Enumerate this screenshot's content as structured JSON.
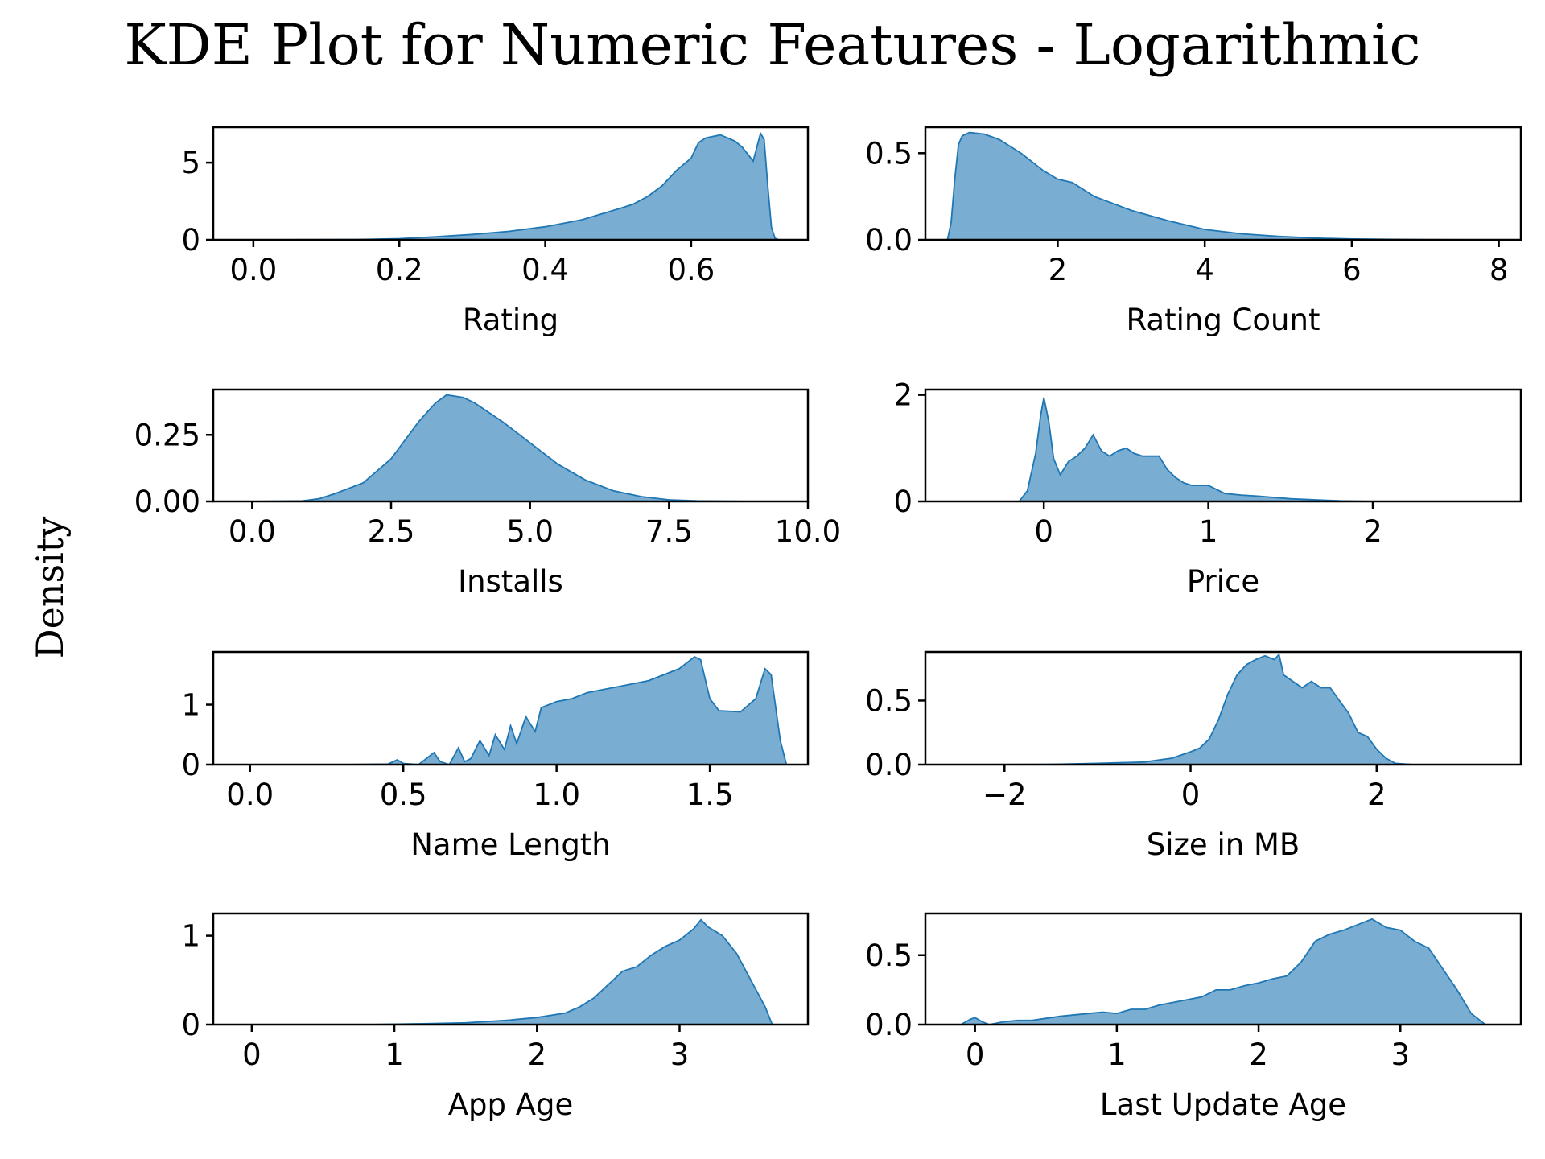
{
  "figure": {
    "title": "KDE Plot for Numeric Features - Logarithmic",
    "ylabel": "Density",
    "fill_color": "#1f77b4"
  },
  "chart_data": [
    {
      "type": "area",
      "xlabel": "Rating",
      "xlim": [
        -0.055,
        0.76
      ],
      "ylim": [
        0,
        7.3
      ],
      "xticks": [
        0.0,
        0.2,
        0.4,
        0.6
      ],
      "xtick_labels": [
        "0.0",
        "0.2",
        "0.4",
        "0.6"
      ],
      "yticks": [
        0,
        5
      ],
      "ytick_labels": [
        "0",
        "5"
      ],
      "x": [
        0.0,
        0.14,
        0.2,
        0.25,
        0.3,
        0.35,
        0.4,
        0.45,
        0.5,
        0.52,
        0.54,
        0.56,
        0.58,
        0.6,
        0.61,
        0.62,
        0.63,
        0.64,
        0.65,
        0.66,
        0.67,
        0.68,
        0.685,
        0.69,
        0.695,
        0.7,
        0.705,
        0.71,
        0.715,
        0.72
      ],
      "y": [
        0,
        0.02,
        0.08,
        0.2,
        0.35,
        0.55,
        0.85,
        1.3,
        2.0,
        2.3,
        2.8,
        3.5,
        4.5,
        5.3,
        6.3,
        6.6,
        6.7,
        6.8,
        6.6,
        6.4,
        6.0,
        5.4,
        5.1,
        6.0,
        6.9,
        6.5,
        3.5,
        0.8,
        0.1,
        0
      ]
    },
    {
      "type": "area",
      "xlabel": "Rating Count",
      "xlim": [
        0.2,
        8.3
      ],
      "ylim": [
        0,
        0.65
      ],
      "xticks": [
        2,
        4,
        6,
        8
      ],
      "xtick_labels": [
        "2",
        "4",
        "6",
        "8"
      ],
      "yticks": [
        0.0,
        0.5
      ],
      "ytick_labels": [
        "0.0",
        "0.5"
      ],
      "x": [
        0.5,
        0.55,
        0.6,
        0.65,
        0.7,
        0.8,
        1.0,
        1.2,
        1.5,
        1.8,
        2.0,
        2.2,
        2.5,
        3.0,
        3.5,
        4.0,
        4.5,
        5.0,
        5.5,
        6.0,
        7.0,
        8.0
      ],
      "y": [
        0,
        0.1,
        0.35,
        0.55,
        0.6,
        0.62,
        0.61,
        0.58,
        0.5,
        0.4,
        0.35,
        0.33,
        0.25,
        0.17,
        0.11,
        0.06,
        0.035,
        0.02,
        0.01,
        0.005,
        0.001,
        0
      ]
    },
    {
      "type": "area",
      "xlabel": "Installs",
      "xlim": [
        -0.7,
        10.0
      ],
      "ylim": [
        0,
        0.42
      ],
      "xticks": [
        0.0,
        2.5,
        5.0,
        7.5,
        10.0
      ],
      "xtick_labels": [
        "0.0",
        "2.5",
        "5.0",
        "7.5",
        "10.0"
      ],
      "yticks": [
        0.0,
        0.25
      ],
      "ytick_labels": [
        "0.00",
        "0.25"
      ],
      "x": [
        0.0,
        0.9,
        1.2,
        1.5,
        2.0,
        2.5,
        3.0,
        3.3,
        3.5,
        3.8,
        4.0,
        4.5,
        5.0,
        5.5,
        6.0,
        6.5,
        7.0,
        7.5,
        8.0,
        9.0,
        10.0
      ],
      "y": [
        0,
        0.002,
        0.01,
        0.03,
        0.07,
        0.16,
        0.3,
        0.37,
        0.4,
        0.39,
        0.37,
        0.3,
        0.22,
        0.14,
        0.08,
        0.04,
        0.018,
        0.006,
        0.002,
        0,
        0
      ]
    },
    {
      "type": "area",
      "xlabel": "Price",
      "xlim": [
        -0.72,
        2.9
      ],
      "ylim": [
        0,
        2.1
      ],
      "xticks": [
        0,
        1,
        2
      ],
      "xtick_labels": [
        "0",
        "1",
        "2"
      ],
      "yticks": [
        0,
        2
      ],
      "ytick_labels": [
        "0",
        "2"
      ],
      "x": [
        -0.15,
        -0.1,
        -0.05,
        -0.02,
        0.0,
        0.03,
        0.06,
        0.1,
        0.15,
        0.2,
        0.25,
        0.3,
        0.35,
        0.4,
        0.45,
        0.5,
        0.55,
        0.6,
        0.65,
        0.7,
        0.75,
        0.8,
        0.85,
        0.9,
        1.0,
        1.1,
        1.2,
        1.3,
        1.5,
        1.8,
        2.0
      ],
      "y": [
        0,
        0.2,
        0.9,
        1.6,
        1.95,
        1.5,
        0.8,
        0.5,
        0.75,
        0.85,
        1.0,
        1.25,
        0.95,
        0.85,
        0.95,
        1.0,
        0.9,
        0.85,
        0.85,
        0.85,
        0.6,
        0.45,
        0.35,
        0.3,
        0.3,
        0.15,
        0.12,
        0.1,
        0.05,
        0.01,
        0
      ]
    },
    {
      "type": "area",
      "xlabel": "Name Length",
      "xlim": [
        -0.12,
        1.82
      ],
      "ylim": [
        0,
        1.88
      ],
      "xticks": [
        0.0,
        0.5,
        1.0,
        1.5
      ],
      "xtick_labels": [
        "0.0",
        "0.5",
        "1.0",
        "1.5"
      ],
      "yticks": [
        0,
        1
      ],
      "ytick_labels": [
        "0",
        "1"
      ],
      "x": [
        0.3,
        0.45,
        0.48,
        0.5,
        0.55,
        0.6,
        0.62,
        0.65,
        0.68,
        0.7,
        0.72,
        0.75,
        0.78,
        0.8,
        0.83,
        0.85,
        0.87,
        0.9,
        0.93,
        0.95,
        1.0,
        1.05,
        1.1,
        1.2,
        1.3,
        1.4,
        1.45,
        1.47,
        1.5,
        1.53,
        1.6,
        1.65,
        1.68,
        1.7,
        1.73,
        1.75
      ],
      "y": [
        0,
        0.01,
        0.08,
        0.02,
        0,
        0.2,
        0.05,
        0.0,
        0.28,
        0.05,
        0.1,
        0.4,
        0.15,
        0.5,
        0.25,
        0.65,
        0.35,
        0.8,
        0.55,
        0.95,
        1.05,
        1.1,
        1.2,
        1.3,
        1.4,
        1.6,
        1.8,
        1.75,
        1.1,
        0.9,
        0.88,
        1.1,
        1.6,
        1.5,
        0.4,
        0
      ]
    },
    {
      "type": "area",
      "xlabel": "Size in MB",
      "xlim": [
        -2.85,
        3.55
      ],
      "ylim": [
        0,
        0.88
      ],
      "xticks": [
        -2,
        0,
        2
      ],
      "xtick_labels": [
        "−2",
        "0",
        "2"
      ],
      "yticks": [
        0.0,
        0.5
      ],
      "ytick_labels": [
        "0.0",
        "0.5"
      ],
      "x": [
        -2.5,
        -1.5,
        -1.0,
        -0.5,
        -0.2,
        0.0,
        0.1,
        0.2,
        0.3,
        0.4,
        0.5,
        0.6,
        0.7,
        0.8,
        0.9,
        0.95,
        1.0,
        1.1,
        1.2,
        1.3,
        1.4,
        1.5,
        1.6,
        1.7,
        1.8,
        1.9,
        2.0,
        2.1,
        2.2,
        2.4
      ],
      "y": [
        0,
        0.002,
        0.01,
        0.02,
        0.05,
        0.1,
        0.13,
        0.2,
        0.35,
        0.55,
        0.7,
        0.78,
        0.82,
        0.85,
        0.82,
        0.86,
        0.7,
        0.65,
        0.6,
        0.65,
        0.6,
        0.6,
        0.5,
        0.4,
        0.25,
        0.22,
        0.12,
        0.05,
        0.01,
        0
      ]
    },
    {
      "type": "area",
      "xlabel": "App Age",
      "xlim": [
        -0.27,
        3.9
      ],
      "ylim": [
        0,
        1.25
      ],
      "xticks": [
        0,
        1,
        2,
        3
      ],
      "xtick_labels": [
        "0",
        "1",
        "2",
        "3"
      ],
      "yticks": [
        0,
        1
      ],
      "ytick_labels": [
        "0",
        "1"
      ],
      "x": [
        0.8,
        1.2,
        1.5,
        1.8,
        2.0,
        2.2,
        2.3,
        2.4,
        2.5,
        2.6,
        2.7,
        2.8,
        2.9,
        3.0,
        3.1,
        3.15,
        3.2,
        3.3,
        3.4,
        3.5,
        3.6,
        3.65
      ],
      "y": [
        0,
        0.01,
        0.02,
        0.05,
        0.08,
        0.13,
        0.2,
        0.3,
        0.45,
        0.6,
        0.65,
        0.78,
        0.88,
        0.95,
        1.08,
        1.18,
        1.1,
        1.0,
        0.8,
        0.5,
        0.2,
        0
      ]
    },
    {
      "type": "area",
      "xlabel": "Last Update Age",
      "xlim": [
        -0.35,
        3.85
      ],
      "ylim": [
        0,
        0.8
      ],
      "xticks": [
        0,
        1,
        2,
        3
      ],
      "xtick_labels": [
        "0",
        "1",
        "2",
        "3"
      ],
      "yticks": [
        0.0,
        0.5
      ],
      "ytick_labels": [
        "0.0",
        "0.5"
      ],
      "x": [
        -0.1,
        -0.03,
        0.0,
        0.05,
        0.1,
        0.2,
        0.3,
        0.4,
        0.6,
        0.8,
        0.9,
        1.0,
        1.1,
        1.2,
        1.3,
        1.4,
        1.5,
        1.6,
        1.7,
        1.8,
        1.9,
        2.0,
        2.1,
        2.2,
        2.3,
        2.4,
        2.5,
        2.6,
        2.7,
        2.8,
        2.9,
        3.0,
        3.1,
        3.2,
        3.3,
        3.4,
        3.5,
        3.6
      ],
      "y": [
        0,
        0.04,
        0.05,
        0.02,
        0.0,
        0.02,
        0.03,
        0.03,
        0.06,
        0.08,
        0.09,
        0.08,
        0.11,
        0.11,
        0.14,
        0.16,
        0.18,
        0.2,
        0.25,
        0.25,
        0.28,
        0.3,
        0.33,
        0.35,
        0.45,
        0.6,
        0.65,
        0.68,
        0.72,
        0.76,
        0.7,
        0.68,
        0.6,
        0.55,
        0.4,
        0.25,
        0.08,
        0
      ]
    }
  ]
}
